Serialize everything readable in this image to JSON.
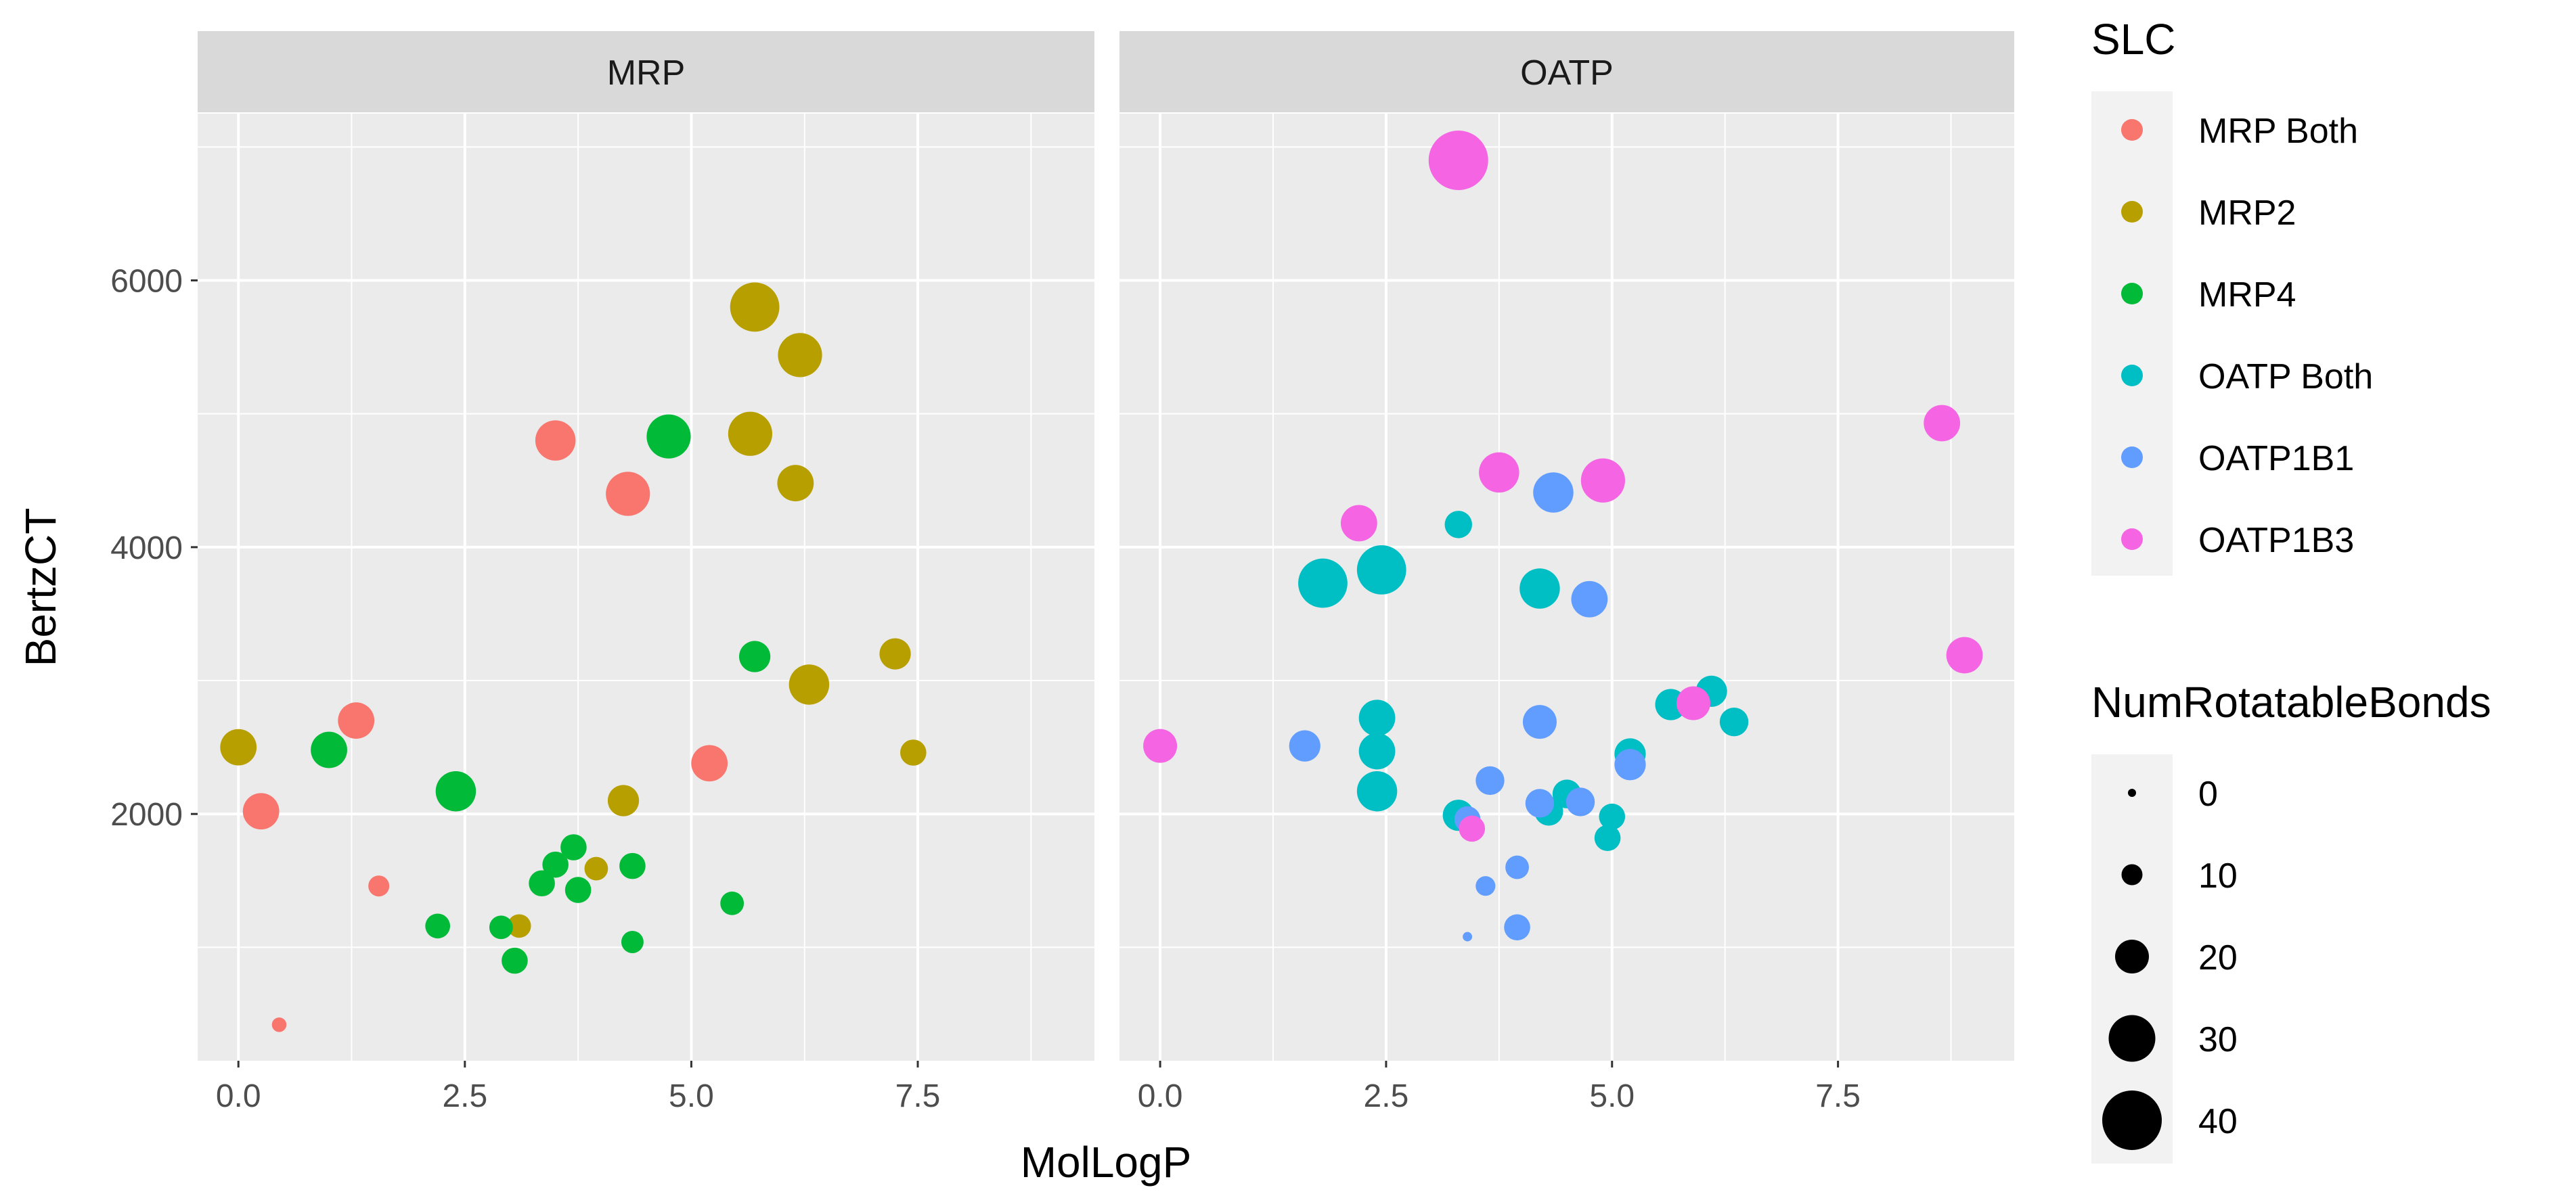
{
  "chart_data": {
    "type": "scatter",
    "xlabel": "MolLogP",
    "ylabel": "BertzCT",
    "xlim": [
      -0.45,
      9.45
    ],
    "ylim": [
      150,
      7250
    ],
    "x_ticks": [
      0.0,
      2.5,
      5.0,
      7.5
    ],
    "x_tick_labels": [
      "0.0",
      "2.5",
      "5.0",
      "7.5"
    ],
    "y_ticks": [
      2000,
      4000,
      6000
    ],
    "y_tick_labels": [
      "2000",
      "4000",
      "6000"
    ],
    "grid": true,
    "facets": [
      "MRP",
      "OATP"
    ],
    "color_legend": {
      "title": "SLC",
      "entries": [
        {
          "name": "MRP Both",
          "color": "#f8766d"
        },
        {
          "name": "MRP2",
          "color": "#b79f00"
        },
        {
          "name": "MRP4",
          "color": "#00ba38"
        },
        {
          "name": "OATP Both",
          "color": "#00bfc4"
        },
        {
          "name": "OATP1B1",
          "color": "#619cff"
        },
        {
          "name": "OATP1B3",
          "color": "#f564e3"
        }
      ]
    },
    "size_legend": {
      "title": "NumRotatableBonds",
      "values": [
        0,
        10,
        20,
        30,
        40
      ],
      "labels": [
        "0",
        "10",
        "20",
        "30",
        "40"
      ]
    },
    "points": [
      {
        "facet": "MRP",
        "series": "MRP Both",
        "x": 3.5,
        "y": 4800,
        "size": 25
      },
      {
        "facet": "MRP",
        "series": "MRP Both",
        "x": 4.3,
        "y": 4400,
        "size": 28
      },
      {
        "facet": "MRP",
        "series": "MRP Both",
        "x": 1.3,
        "y": 2700,
        "size": 22
      },
      {
        "facet": "MRP",
        "series": "MRP Both",
        "x": 0.25,
        "y": 2020,
        "size": 22
      },
      {
        "facet": "MRP",
        "series": "MRP Both",
        "x": 5.2,
        "y": 2380,
        "size": 22
      },
      {
        "facet": "MRP",
        "series": "MRP Both",
        "x": 1.55,
        "y": 1460,
        "size": 10
      },
      {
        "facet": "MRP",
        "series": "MRP Both",
        "x": 0.45,
        "y": 420,
        "size": 5
      },
      {
        "facet": "MRP",
        "series": "MRP2",
        "x": 5.7,
        "y": 5800,
        "size": 32
      },
      {
        "facet": "MRP",
        "series": "MRP2",
        "x": 6.2,
        "y": 5440,
        "size": 28
      },
      {
        "facet": "MRP",
        "series": "MRP2",
        "x": 5.65,
        "y": 4850,
        "size": 28
      },
      {
        "facet": "MRP",
        "series": "MRP2",
        "x": 6.15,
        "y": 4480,
        "size": 22
      },
      {
        "facet": "MRP",
        "series": "MRP2",
        "x": 7.25,
        "y": 3200,
        "size": 18
      },
      {
        "facet": "MRP",
        "series": "MRP2",
        "x": 6.3,
        "y": 2970,
        "size": 25
      },
      {
        "facet": "MRP",
        "series": "MRP2",
        "x": 7.45,
        "y": 2460,
        "size": 14
      },
      {
        "facet": "MRP",
        "series": "MRP2",
        "x": 0.0,
        "y": 2500,
        "size": 22
      },
      {
        "facet": "MRP",
        "series": "MRP2",
        "x": 4.25,
        "y": 2100,
        "size": 18
      },
      {
        "facet": "MRP",
        "series": "MRP2",
        "x": 3.95,
        "y": 1590,
        "size": 12
      },
      {
        "facet": "MRP",
        "series": "MRP2",
        "x": 3.1,
        "y": 1160,
        "size": 12
      },
      {
        "facet": "MRP",
        "series": "MRP4",
        "x": 4.75,
        "y": 4830,
        "size": 28
      },
      {
        "facet": "MRP",
        "series": "MRP4",
        "x": 5.7,
        "y": 3180,
        "size": 18
      },
      {
        "facet": "MRP",
        "series": "MRP4",
        "x": 1.0,
        "y": 2480,
        "size": 22
      },
      {
        "facet": "MRP",
        "series": "MRP4",
        "x": 2.4,
        "y": 2170,
        "size": 25
      },
      {
        "facet": "MRP",
        "series": "MRP4",
        "x": 3.7,
        "y": 1750,
        "size": 14
      },
      {
        "facet": "MRP",
        "series": "MRP4",
        "x": 3.5,
        "y": 1620,
        "size": 14
      },
      {
        "facet": "MRP",
        "series": "MRP4",
        "x": 3.35,
        "y": 1480,
        "size": 14
      },
      {
        "facet": "MRP",
        "series": "MRP4",
        "x": 3.75,
        "y": 1430,
        "size": 14
      },
      {
        "facet": "MRP",
        "series": "MRP4",
        "x": 4.35,
        "y": 1610,
        "size": 14
      },
      {
        "facet": "MRP",
        "series": "MRP4",
        "x": 5.45,
        "y": 1330,
        "size": 12
      },
      {
        "facet": "MRP",
        "series": "MRP4",
        "x": 2.2,
        "y": 1160,
        "size": 13
      },
      {
        "facet": "MRP",
        "series": "MRP4",
        "x": 2.9,
        "y": 1150,
        "size": 12
      },
      {
        "facet": "MRP",
        "series": "MRP4",
        "x": 3.05,
        "y": 900,
        "size": 14
      },
      {
        "facet": "MRP",
        "series": "MRP4",
        "x": 4.35,
        "y": 1040,
        "size": 11
      },
      {
        "facet": "OATP",
        "series": "OATP Both",
        "x": 1.8,
        "y": 3730,
        "size": 32
      },
      {
        "facet": "OATP",
        "series": "OATP Both",
        "x": 2.45,
        "y": 3830,
        "size": 32
      },
      {
        "facet": "OATP",
        "series": "OATP Both",
        "x": 3.3,
        "y": 4170,
        "size": 15
      },
      {
        "facet": "OATP",
        "series": "OATP Both",
        "x": 4.2,
        "y": 3690,
        "size": 25
      },
      {
        "facet": "OATP",
        "series": "OATP Both",
        "x": 2.4,
        "y": 2720,
        "size": 22
      },
      {
        "facet": "OATP",
        "series": "OATP Both",
        "x": 2.4,
        "y": 2470,
        "size": 22
      },
      {
        "facet": "OATP",
        "series": "OATP Both",
        "x": 2.4,
        "y": 2170,
        "size": 25
      },
      {
        "facet": "OATP",
        "series": "OATP Both",
        "x": 5.65,
        "y": 2820,
        "size": 18
      },
      {
        "facet": "OATP",
        "series": "OATP Both",
        "x": 6.1,
        "y": 2920,
        "size": 18
      },
      {
        "facet": "OATP",
        "series": "OATP Both",
        "x": 6.35,
        "y": 2690,
        "size": 16
      },
      {
        "facet": "OATP",
        "series": "OATP Both",
        "x": 5.2,
        "y": 2450,
        "size": 18
      },
      {
        "facet": "OATP",
        "series": "OATP Both",
        "x": 3.3,
        "y": 1990,
        "size": 18
      },
      {
        "facet": "OATP",
        "series": "OATP Both",
        "x": 4.3,
        "y": 2020,
        "size": 16
      },
      {
        "facet": "OATP",
        "series": "OATP Both",
        "x": 4.5,
        "y": 2150,
        "size": 16
      },
      {
        "facet": "OATP",
        "series": "OATP Both",
        "x": 5.0,
        "y": 1980,
        "size": 14
      },
      {
        "facet": "OATP",
        "series": "OATP Both",
        "x": 4.95,
        "y": 1820,
        "size": 14
      },
      {
        "facet": "OATP",
        "series": "OATP1B1",
        "x": 4.35,
        "y": 4410,
        "size": 25
      },
      {
        "facet": "OATP",
        "series": "OATP1B1",
        "x": 4.75,
        "y": 3610,
        "size": 22
      },
      {
        "facet": "OATP",
        "series": "OATP1B1",
        "x": 4.2,
        "y": 2690,
        "size": 20
      },
      {
        "facet": "OATP",
        "series": "OATP1B1",
        "x": 1.6,
        "y": 2510,
        "size": 18
      },
      {
        "facet": "OATP",
        "series": "OATP1B1",
        "x": 5.2,
        "y": 2370,
        "size": 18
      },
      {
        "facet": "OATP",
        "series": "OATP1B1",
        "x": 3.65,
        "y": 2250,
        "size": 16
      },
      {
        "facet": "OATP",
        "series": "OATP1B1",
        "x": 4.2,
        "y": 2080,
        "size": 16
      },
      {
        "facet": "OATP",
        "series": "OATP1B1",
        "x": 4.65,
        "y": 2090,
        "size": 16
      },
      {
        "facet": "OATP",
        "series": "OATP1B1",
        "x": 3.4,
        "y": 1960,
        "size": 14
      },
      {
        "facet": "OATP",
        "series": "OATP1B1",
        "x": 3.95,
        "y": 1600,
        "size": 12
      },
      {
        "facet": "OATP",
        "series": "OATP1B1",
        "x": 3.6,
        "y": 1460,
        "size": 9
      },
      {
        "facet": "OATP",
        "series": "OATP1B1",
        "x": 3.95,
        "y": 1150,
        "size": 14
      },
      {
        "facet": "OATP",
        "series": "OATP1B1",
        "x": 3.4,
        "y": 1080,
        "size": 1
      },
      {
        "facet": "OATP",
        "series": "OATP1B3",
        "x": 3.3,
        "y": 6900,
        "size": 40
      },
      {
        "facet": "OATP",
        "series": "OATP1B3",
        "x": 3.75,
        "y": 4560,
        "size": 25
      },
      {
        "facet": "OATP",
        "series": "OATP1B3",
        "x": 4.9,
        "y": 4500,
        "size": 28
      },
      {
        "facet": "OATP",
        "series": "OATP1B3",
        "x": 2.2,
        "y": 4180,
        "size": 22
      },
      {
        "facet": "OATP",
        "series": "OATP1B3",
        "x": 8.65,
        "y": 4930,
        "size": 22
      },
      {
        "facet": "OATP",
        "series": "OATP1B3",
        "x": 8.9,
        "y": 3190,
        "size": 22
      },
      {
        "facet": "OATP",
        "series": "OATP1B3",
        "x": 5.9,
        "y": 2830,
        "size": 20
      },
      {
        "facet": "OATP",
        "series": "OATP1B3",
        "x": 0.0,
        "y": 2510,
        "size": 20
      },
      {
        "facet": "OATP",
        "series": "OATP1B3",
        "x": 3.45,
        "y": 1890,
        "size": 14
      }
    ]
  }
}
